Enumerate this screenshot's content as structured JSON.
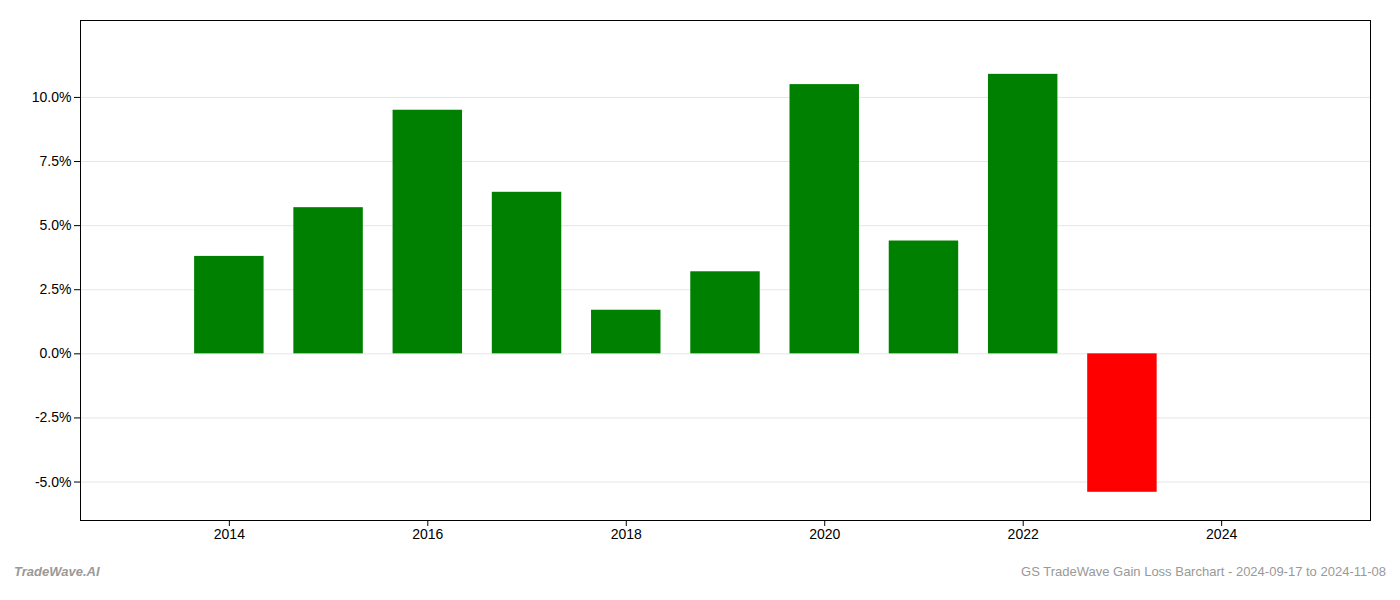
{
  "chart_data": {
    "type": "bar",
    "x": [
      2014,
      2015,
      2016,
      2017,
      2018,
      2019,
      2020,
      2021,
      2022,
      2023
    ],
    "values": [
      0.038,
      0.057,
      0.095,
      0.063,
      0.017,
      0.032,
      0.105,
      0.044,
      0.109,
      -0.054
    ],
    "colors": [
      "#008000",
      "#008000",
      "#008000",
      "#008000",
      "#008000",
      "#008000",
      "#008000",
      "#008000",
      "#008000",
      "#ff0000"
    ],
    "xlim": [
      2012.5,
      2025.5
    ],
    "xticks": [
      2014,
      2016,
      2018,
      2020,
      2022,
      2024
    ],
    "ylim": [
      -0.065,
      0.13
    ],
    "yticks": [
      {
        "value": -0.05,
        "label": "-5.0%"
      },
      {
        "value": -0.025,
        "label": "-2.5%"
      },
      {
        "value": 0.0,
        "label": "0.0%"
      },
      {
        "value": 0.025,
        "label": "2.5%"
      },
      {
        "value": 0.05,
        "label": "5.0%"
      },
      {
        "value": 0.075,
        "label": "7.5%"
      },
      {
        "value": 0.1,
        "label": "10.0%"
      }
    ],
    "grid": true,
    "annotations": [
      "TradeWave.AI",
      "GS TradeWave Gain Loss Barchart - 2024-09-17 to 2024-11-08"
    ]
  }
}
